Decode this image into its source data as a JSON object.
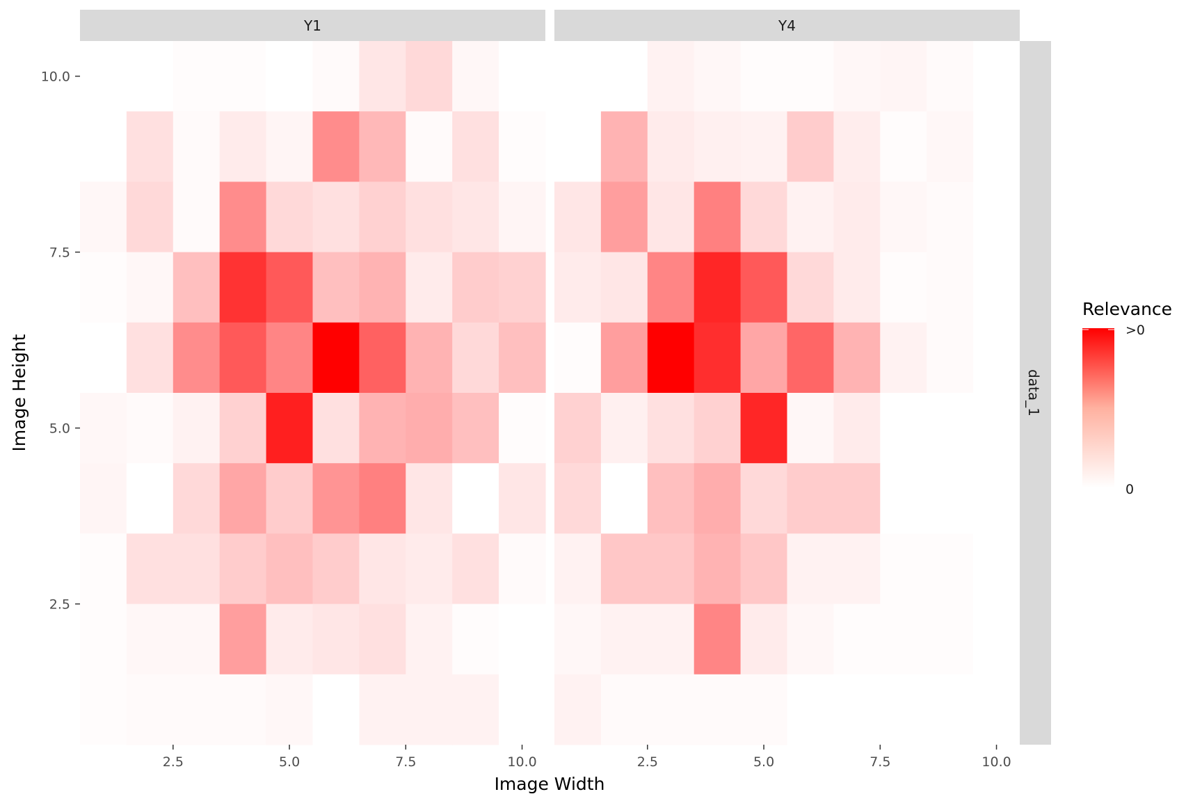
{
  "chart_data": {
    "type": "heatmap",
    "xlabel": "Image Width",
    "ylabel": "Image Height",
    "xlim": [
      0.5,
      10.5
    ],
    "ylim": [
      0.5,
      10.5
    ],
    "x_ticks": [
      2.5,
      5.0,
      7.5,
      10.0
    ],
    "x_tick_labels": [
      "2.5",
      "5.0",
      "7.5",
      "10.0"
    ],
    "y_ticks": [
      2.5,
      5.0,
      7.5,
      10.0
    ],
    "y_tick_labels": [
      "2.5",
      "5.0",
      "7.5",
      "10.0"
    ],
    "row_strip": "data_1",
    "grid": false,
    "legend": {
      "title": "Relevance",
      "position": "right",
      "high_label": ">0",
      "low_label": "0",
      "high_color": "#ff0000",
      "low_color": "#ffffff"
    },
    "panels": [
      {
        "name": "Y1",
        "values_top_to_bottom": [
          [
            0.0,
            0.0,
            0.01,
            0.01,
            0.0,
            0.02,
            0.1,
            0.15,
            0.03,
            0.0
          ],
          [
            0.0,
            0.12,
            0.02,
            0.08,
            0.04,
            0.45,
            0.28,
            0.02,
            0.12,
            0.01
          ],
          [
            0.03,
            0.15,
            0.02,
            0.45,
            0.15,
            0.12,
            0.18,
            0.12,
            0.1,
            0.04
          ],
          [
            0.01,
            0.03,
            0.25,
            0.8,
            0.65,
            0.25,
            0.3,
            0.08,
            0.2,
            0.18
          ],
          [
            0.0,
            0.12,
            0.45,
            0.65,
            0.48,
            1.0,
            0.62,
            0.3,
            0.15,
            0.25
          ],
          [
            0.03,
            0.02,
            0.05,
            0.18,
            0.88,
            0.12,
            0.3,
            0.32,
            0.25,
            0.01
          ],
          [
            0.04,
            0.0,
            0.15,
            0.35,
            0.2,
            0.42,
            0.5,
            0.1,
            0.0,
            0.1
          ],
          [
            0.01,
            0.12,
            0.12,
            0.2,
            0.25,
            0.2,
            0.1,
            0.08,
            0.12,
            0.02
          ],
          [
            0.01,
            0.03,
            0.03,
            0.38,
            0.08,
            0.1,
            0.12,
            0.05,
            0.01,
            0.0
          ],
          [
            0.01,
            0.02,
            0.02,
            0.02,
            0.03,
            0.0,
            0.05,
            0.05,
            0.05,
            0.0
          ]
        ]
      },
      {
        "name": "Y4",
        "values_top_to_bottom": [
          [
            0.0,
            0.0,
            0.05,
            0.03,
            0.01,
            0.01,
            0.03,
            0.04,
            0.02,
            0.0
          ],
          [
            0.0,
            0.3,
            0.08,
            0.06,
            0.05,
            0.2,
            0.07,
            0.01,
            0.03,
            0.0
          ],
          [
            0.1,
            0.38,
            0.1,
            0.5,
            0.15,
            0.05,
            0.08,
            0.03,
            0.02,
            0.0
          ],
          [
            0.08,
            0.1,
            0.48,
            0.85,
            0.65,
            0.15,
            0.08,
            0.01,
            0.02,
            0.0
          ],
          [
            0.01,
            0.38,
            1.0,
            0.82,
            0.35,
            0.6,
            0.3,
            0.05,
            0.02,
            0.0
          ],
          [
            0.18,
            0.06,
            0.12,
            0.18,
            0.85,
            0.03,
            0.08,
            0.0,
            0.0,
            0.0
          ],
          [
            0.15,
            0.0,
            0.25,
            0.32,
            0.15,
            0.2,
            0.2,
            0.0,
            0.0,
            0.0
          ],
          [
            0.05,
            0.22,
            0.22,
            0.3,
            0.22,
            0.05,
            0.05,
            0.01,
            0.01,
            0.0
          ],
          [
            0.03,
            0.05,
            0.05,
            0.48,
            0.08,
            0.03,
            0.01,
            0.01,
            0.01,
            0.0
          ],
          [
            0.05,
            0.02,
            0.02,
            0.02,
            0.02,
            0.0,
            0.0,
            0.0,
            0.0,
            0.0
          ]
        ]
      }
    ]
  }
}
